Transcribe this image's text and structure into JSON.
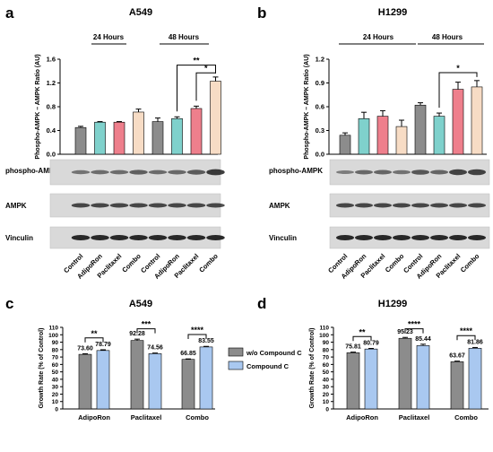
{
  "panels": {
    "a": {
      "letter": "a",
      "title": "A549",
      "time_labels": [
        "24 Hours",
        "48 Hours"
      ],
      "blot_labels": [
        "phospho-AMPK",
        "AMPK",
        "Vinculin"
      ]
    },
    "b": {
      "letter": "b",
      "title": "H1299",
      "time_labels": [
        "24 Hours",
        "48 Hours"
      ],
      "blot_labels": [
        "phospho-AMPK",
        "AMPK",
        "Vinculin"
      ]
    },
    "c": {
      "letter": "c",
      "title": "A549"
    },
    "d": {
      "letter": "d",
      "title": "H1299"
    }
  },
  "legend": {
    "items": [
      {
        "label": "w/o Compound C",
        "color": "#8c8c8c"
      },
      {
        "label": "Compound C",
        "color": "#a9c8f0"
      }
    ]
  },
  "chart_data": [
    {
      "panel": "a",
      "type": "bar",
      "title": "A549",
      "ylabel": "Phospho-AMPK – AMPK  Ratio (AU)",
      "ylim": [
        0,
        1.6
      ],
      "yticks": [
        "0.0",
        "0.4",
        "0.8",
        "1.2",
        "1.6"
      ],
      "categories": [
        "Control",
        "AdipoRon",
        "Paclitaxel",
        "Combo",
        "Control",
        "AdipoRon",
        "Paclitaxel",
        "Combo"
      ],
      "values": [
        0.45,
        0.54,
        0.54,
        0.71,
        0.55,
        0.6,
        0.77,
        1.23
      ],
      "errors": [
        0.02,
        0.01,
        0.01,
        0.05,
        0.06,
        0.03,
        0.04,
        0.07
      ],
      "colors": [
        "#8c8c8c",
        "#7fd1cc",
        "#ee7f8c",
        "#f7dcc5",
        "#8c8c8c",
        "#7fd1cc",
        "#ee7f8c",
        "#f7dcc5"
      ],
      "significance": [
        {
          "from": 5,
          "to": 7,
          "label": "**"
        },
        {
          "from": 6,
          "to": 7,
          "label": "*"
        }
      ]
    },
    {
      "panel": "b",
      "type": "bar",
      "title": "H1299",
      "ylabel": "Phospho-AMPK – AMPK  Ratio (AU)",
      "ylim": [
        0,
        1.2
      ],
      "yticks": [
        "0.0",
        "0.3",
        "0.6",
        "0.9",
        "1.2"
      ],
      "categories": [
        "Control",
        "AdipoRon",
        "Paclitaxel",
        "Combo",
        "Control",
        "AdipoRon",
        "Paclitaxel",
        "Combo"
      ],
      "values": [
        0.24,
        0.45,
        0.48,
        0.35,
        0.62,
        0.48,
        0.82,
        0.85
      ],
      "errors": [
        0.03,
        0.08,
        0.07,
        0.08,
        0.03,
        0.04,
        0.09,
        0.08
      ],
      "colors": [
        "#8c8c8c",
        "#7fd1cc",
        "#ee7f8c",
        "#f7dcc5",
        "#8c8c8c",
        "#7fd1cc",
        "#ee7f8c",
        "#f7dcc5"
      ],
      "significance": [
        {
          "from": 5,
          "to": 7,
          "label": "*"
        }
      ]
    },
    {
      "panel": "c",
      "type": "bar",
      "title": "A549",
      "ylabel": "Growth Rate (% of Control)",
      "ylim": [
        0,
        110
      ],
      "yticks": [
        "0",
        "10",
        "20",
        "30",
        "40",
        "50",
        "60",
        "70",
        "80",
        "90",
        "100",
        "110"
      ],
      "categories": [
        "AdipoRon",
        "Paclitaxel",
        "Combo"
      ],
      "series": [
        {
          "name": "w/o Compound C",
          "values": [
            73.6,
            92.28,
            66.85
          ],
          "labels": [
            "73.60",
            "92.28",
            "66.85"
          ],
          "errors": [
            0.8,
            1.8,
            0.6
          ]
        },
        {
          "name": "Compound C",
          "values": [
            78.79,
            74.56,
            83.55
          ],
          "labels": [
            "78.79",
            "74.56",
            "83.55"
          ],
          "errors": [
            1.0,
            0.8,
            0.8
          ]
        }
      ],
      "significance": [
        "**",
        "***",
        "****"
      ]
    },
    {
      "panel": "d",
      "type": "bar",
      "title": "H1299",
      "ylabel": "Growth Rate (% of Control)",
      "ylim": [
        0,
        110
      ],
      "yticks": [
        "0",
        "10",
        "20",
        "30",
        "40",
        "50",
        "60",
        "70",
        "80",
        "90",
        "100",
        "110"
      ],
      "categories": [
        "AdipoRon",
        "Paclitaxel",
        "Combo"
      ],
      "series": [
        {
          "name": "w/o Compound C",
          "values": [
            75.81,
            95.23,
            63.67
          ],
          "labels": [
            "75.81",
            "95.23",
            "63.67"
          ],
          "errors": [
            0.8,
            1.2,
            0.8
          ]
        },
        {
          "name": "Compound C",
          "values": [
            80.79,
            85.44,
            81.86
          ],
          "labels": [
            "80.79",
            "85.44",
            "81.86"
          ],
          "errors": [
            0.8,
            1.8,
            1.0
          ]
        }
      ],
      "significance": [
        "**",
        "****",
        "****"
      ]
    }
  ]
}
